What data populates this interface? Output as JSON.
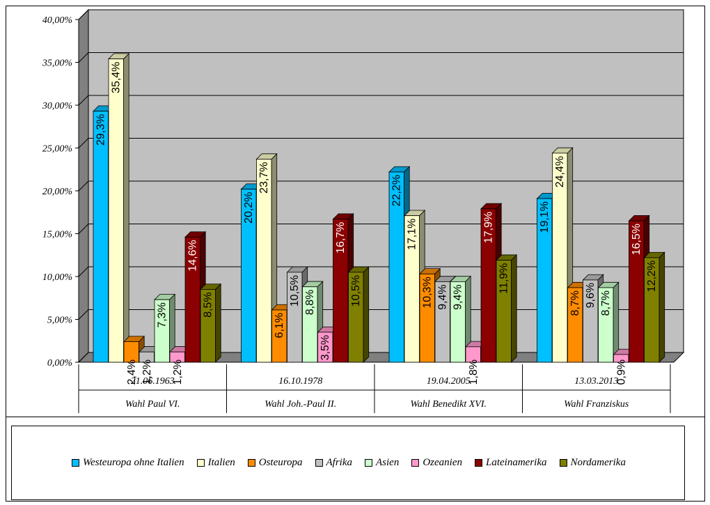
{
  "chart_data": {
    "type": "bar",
    "orientation": "vertical-3d",
    "ylim": [
      0,
      40
    ],
    "y_ticks": [
      "0,00%",
      "5,00%",
      "10,00%",
      "15,00%",
      "20,00%",
      "25,00%",
      "30,00%",
      "35,00%",
      "40,00%"
    ],
    "y_tick_values": [
      0,
      5,
      10,
      15,
      20,
      25,
      30,
      35,
      40
    ],
    "grid": true,
    "legend_position": "bottom",
    "categories": [
      {
        "date": "21.06.1963",
        "label": "Wahl Paul VI."
      },
      {
        "date": "16.10.1978",
        "label": "Wahl Joh.-Paul II."
      },
      {
        "date": "19.04.2005",
        "label": "Wahl Benedikt XVI."
      },
      {
        "date": "13.03.2013",
        "label": "Wahl Franziskus"
      }
    ],
    "series": [
      {
        "name": "Westeuropa ohne Italien",
        "color": "#00BFFF",
        "values": [
          29.3,
          20.2,
          22.2,
          19.1
        ],
        "labels": [
          "29,3%",
          "20,2%",
          "22,2%",
          "19,1%"
        ]
      },
      {
        "name": "Italien",
        "color": "#FFFFCC",
        "values": [
          35.4,
          23.7,
          17.1,
          24.4
        ],
        "labels": [
          "35,4%",
          "23,7%",
          "17,1%",
          "24,4%"
        ]
      },
      {
        "name": "Osteuropa",
        "color": "#FF8C00",
        "values": [
          2.4,
          6.1,
          10.3,
          8.7
        ],
        "labels": [
          "2,4%",
          "6,1%",
          "10,3%",
          "8,7%"
        ]
      },
      {
        "name": "Afrika",
        "color": "#C0C0C0",
        "values": [
          1.2,
          10.5,
          9.4,
          9.6
        ],
        "labels": [
          "1,2%",
          "10,5%",
          "9,4%",
          "9,6%"
        ]
      },
      {
        "name": "Asien",
        "color": "#CCFFCC",
        "values": [
          7.3,
          8.8,
          9.4,
          8.7
        ],
        "labels": [
          "7,3%",
          "8,8%",
          "9,4%",
          "8,7%"
        ]
      },
      {
        "name": "Ozeanien",
        "color": "#FF99CC",
        "values": [
          1.2,
          3.5,
          1.8,
          0.9
        ],
        "labels": [
          "1,2%",
          "3,5%",
          "1,8%",
          "0,9%"
        ]
      },
      {
        "name": "Lateinamerika",
        "color": "#8B0000",
        "values": [
          14.6,
          16.7,
          17.9,
          16.5
        ],
        "labels": [
          "14,6%",
          "16,7%",
          "17,9%",
          "16,5%"
        ]
      },
      {
        "name": "Nordamerika",
        "color": "#808000",
        "values": [
          8.5,
          10.5,
          11.9,
          12.2
        ],
        "labels": [
          "8,5%",
          "10,5%",
          "11,9%",
          "12,2%"
        ]
      }
    ]
  }
}
